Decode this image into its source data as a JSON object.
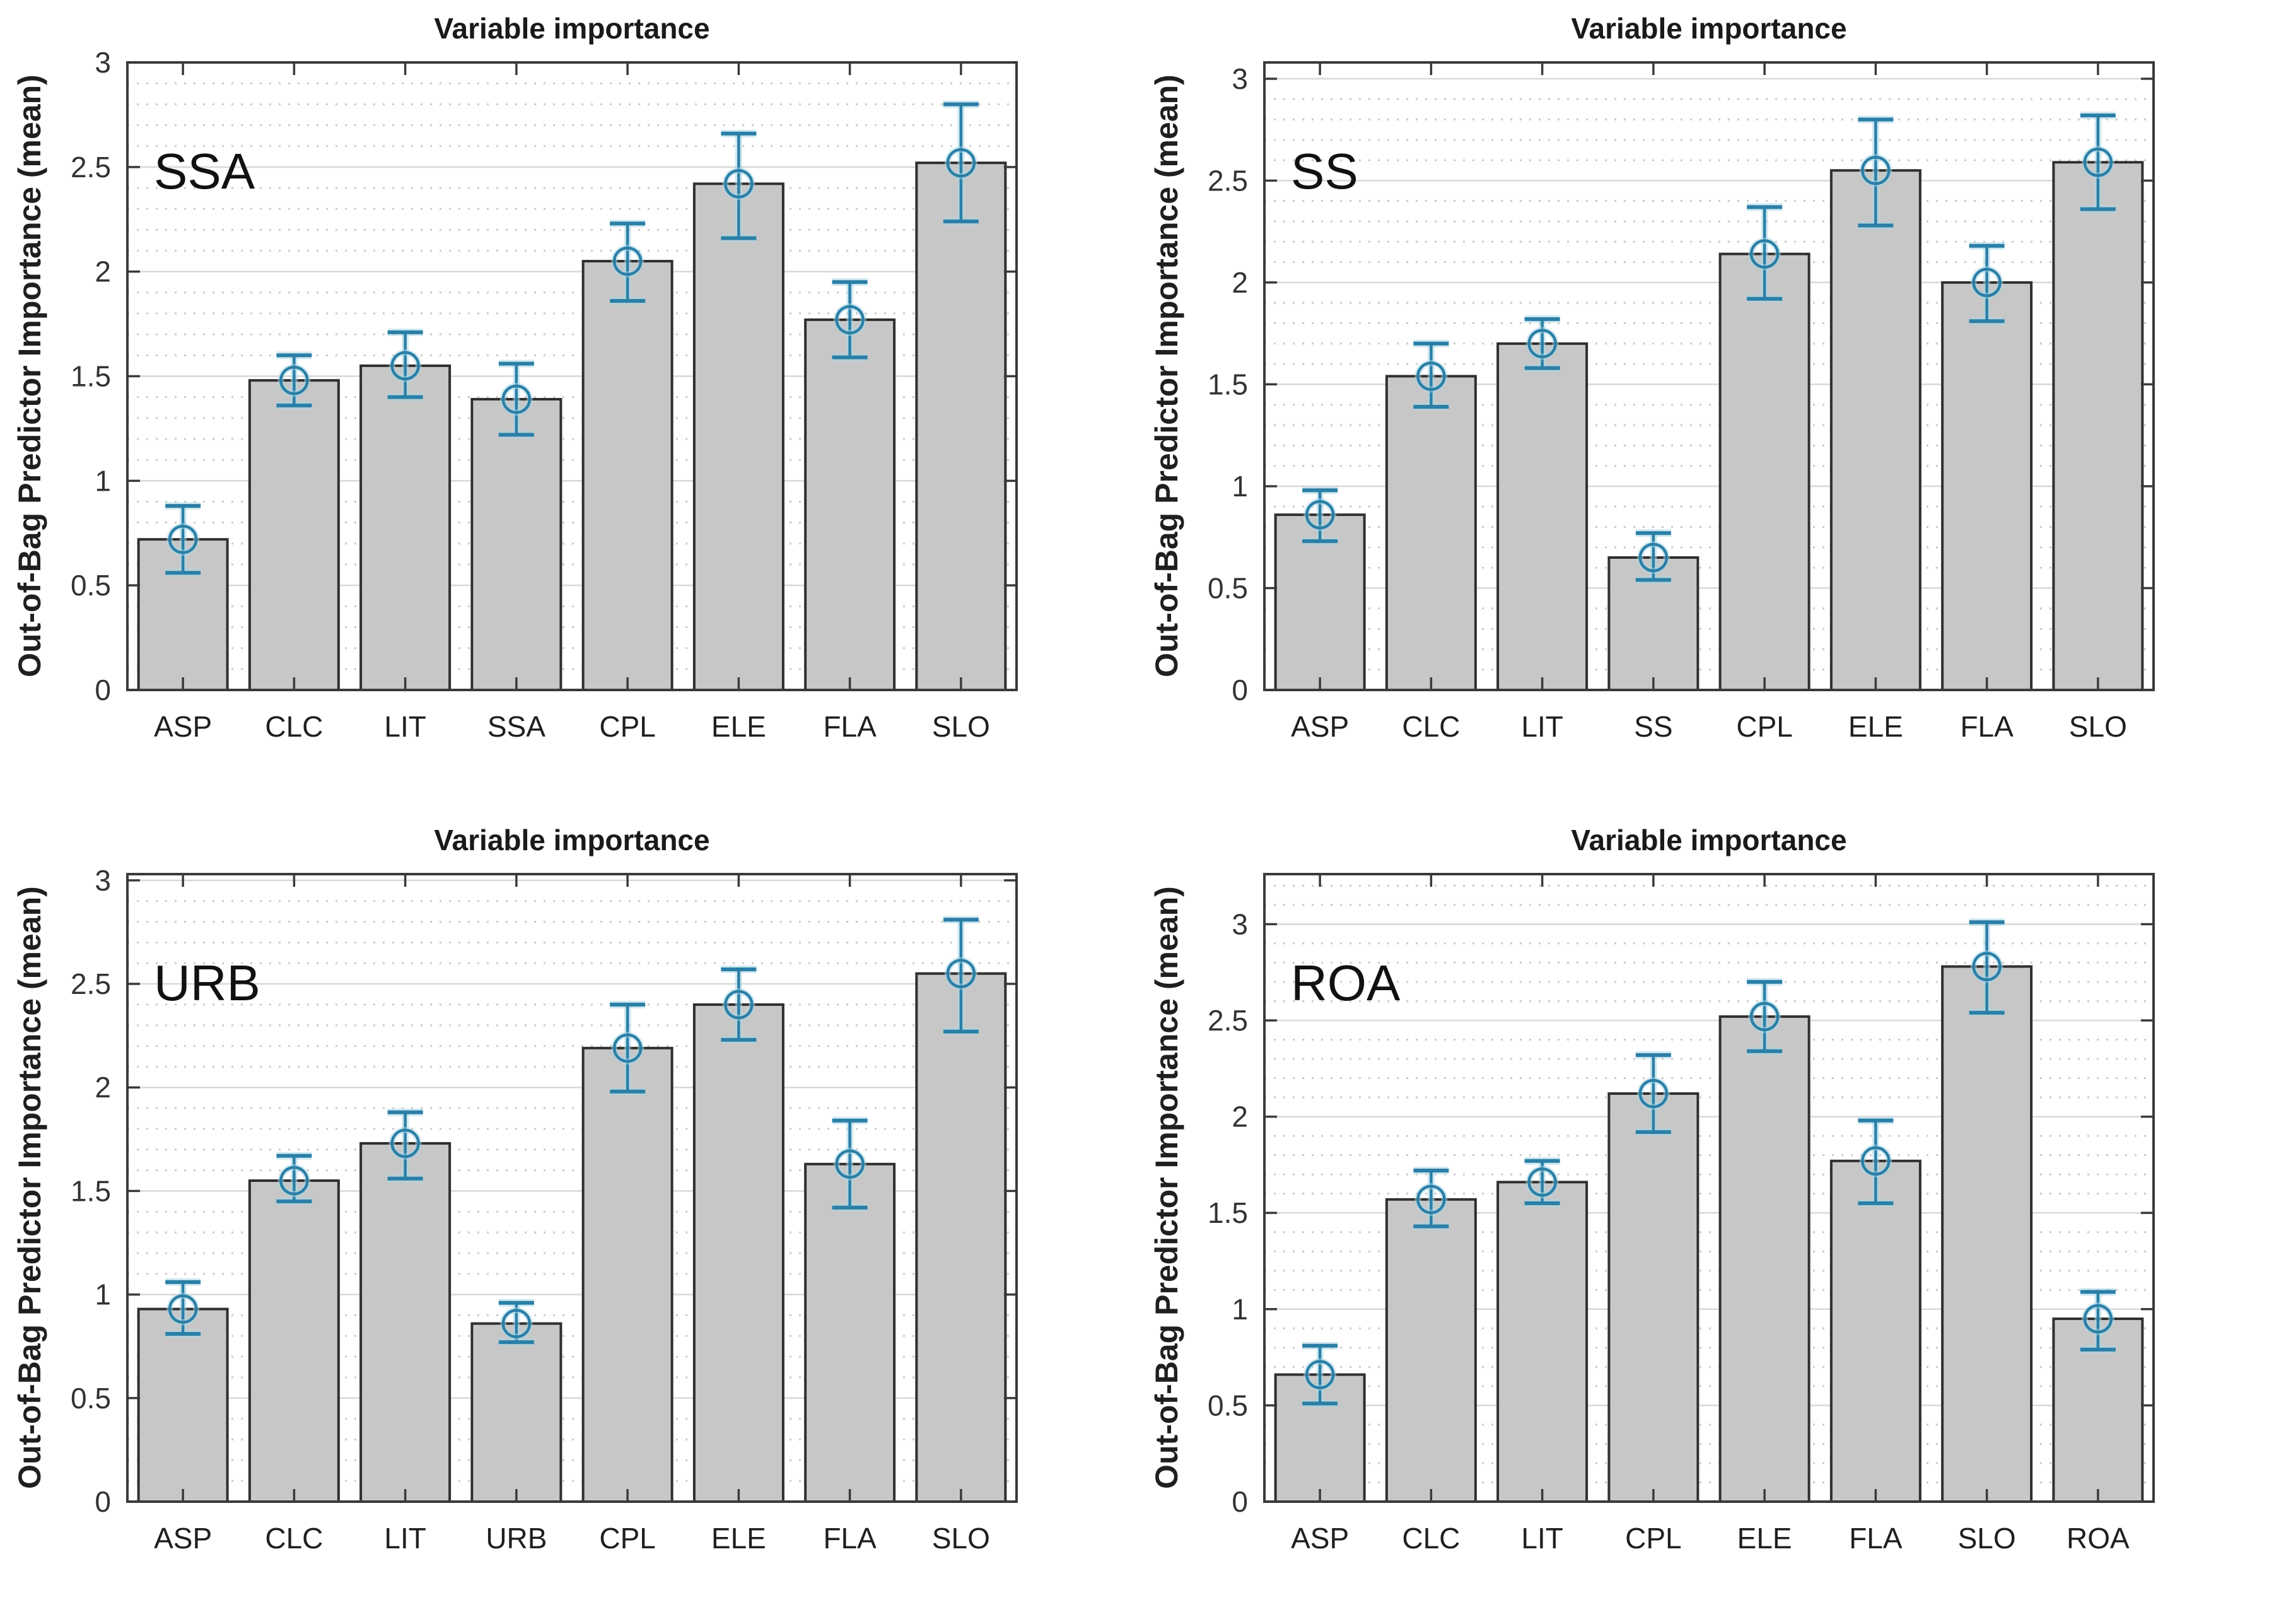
{
  "figure": {
    "background": "#ffffff",
    "panel_count": 4
  },
  "style": {
    "bar_color": "#c7c7c7",
    "bar_edge_color": "#2f2f2f",
    "error_color": "#2b7fa6",
    "error_glow_color": "#a8d8e8",
    "axis_color": "#3a3a3a",
    "major_grid_color": "#d8d8d8",
    "minor_grid_color": "#cacaca",
    "marker": "open-circle"
  },
  "chart_data": [
    {
      "type": "bar",
      "panel_label": "SSA",
      "title": "Variable importance",
      "ylabel": "Out-of-Bag Predictor Importance (mean)",
      "xlabel": "",
      "categories": [
        "ASP",
        "CLC",
        "LIT",
        "SSA",
        "CPL",
        "ELE",
        "FLA",
        "SLO"
      ],
      "values": [
        0.72,
        1.48,
        1.55,
        1.39,
        2.05,
        2.42,
        1.77,
        2.52
      ],
      "error_low": [
        0.56,
        1.36,
        1.4,
        1.22,
        1.86,
        2.16,
        1.59,
        2.24
      ],
      "error_high": [
        0.88,
        1.6,
        1.71,
        1.56,
        2.23,
        2.66,
        1.95,
        2.8
      ],
      "yticks": [
        0,
        0.5,
        1,
        1.5,
        2,
        2.5,
        3
      ],
      "ytick_labels": [
        "0",
        "0.5",
        "1",
        "1.5",
        "2",
        "2.5",
        "3"
      ],
      "ylim": [
        0,
        3.0
      ],
      "minor_step": 0.1,
      "grid": "horizontal: major solid, minor dotted",
      "legend": "none"
    },
    {
      "type": "bar",
      "panel_label": "SS",
      "title": "Variable importance",
      "ylabel": "Out-of-Bag Predictor Importance (mean)",
      "xlabel": "",
      "categories": [
        "ASP",
        "CLC",
        "LIT",
        "SS",
        "CPL",
        "ELE",
        "FLA",
        "SLO"
      ],
      "values": [
        0.86,
        1.54,
        1.7,
        0.65,
        2.14,
        2.55,
        2.0,
        2.59
      ],
      "error_low": [
        0.73,
        1.39,
        1.58,
        0.54,
        1.92,
        2.28,
        1.81,
        2.36
      ],
      "error_high": [
        0.98,
        1.7,
        1.82,
        0.77,
        2.37,
        2.8,
        2.18,
        2.82
      ],
      "yticks": [
        0,
        0.5,
        1,
        1.5,
        2,
        2.5,
        3
      ],
      "ytick_labels": [
        "0",
        "0.5",
        "1",
        "1.5",
        "2",
        "2.5",
        "3"
      ],
      "ylim": [
        0,
        3.08
      ],
      "minor_step": 0.1,
      "grid": "horizontal: major solid, minor dotted",
      "legend": "none"
    },
    {
      "type": "bar",
      "panel_label": "URB",
      "title": "Variable importance",
      "ylabel": "Out-of-Bag Predictor Importance (mean)",
      "xlabel": "",
      "categories": [
        "ASP",
        "CLC",
        "LIT",
        "URB",
        "CPL",
        "ELE",
        "FLA",
        "SLO"
      ],
      "values": [
        0.93,
        1.55,
        1.73,
        0.86,
        2.19,
        2.4,
        1.63,
        2.55
      ],
      "error_low": [
        0.81,
        1.45,
        1.56,
        0.77,
        1.98,
        2.23,
        1.42,
        2.27
      ],
      "error_high": [
        1.06,
        1.67,
        1.88,
        0.96,
        2.4,
        2.57,
        1.84,
        2.81
      ],
      "yticks": [
        0,
        0.5,
        1,
        1.5,
        2,
        2.5,
        3
      ],
      "ytick_labels": [
        "0",
        "0.5",
        "1",
        "1.5",
        "2",
        "2.5",
        "3"
      ],
      "ylim": [
        0,
        3.03
      ],
      "minor_step": 0.1,
      "grid": "horizontal: major solid, minor dotted",
      "legend": "none"
    },
    {
      "type": "bar",
      "panel_label": "ROA",
      "title": "Variable importance",
      "ylabel": "Out-of-Bag Predictor Importance (mean)",
      "xlabel": "",
      "categories": [
        "ASP",
        "CLC",
        "LIT",
        "CPL",
        "ELE",
        "FLA",
        "SLO",
        "ROA"
      ],
      "values": [
        0.66,
        1.57,
        1.66,
        2.12,
        2.52,
        1.77,
        2.78,
        0.95
      ],
      "error_low": [
        0.51,
        1.43,
        1.55,
        1.92,
        2.34,
        1.55,
        2.54,
        0.79
      ],
      "error_high": [
        0.81,
        1.72,
        1.77,
        2.32,
        2.7,
        1.98,
        3.01,
        1.09
      ],
      "yticks": [
        0,
        0.5,
        1,
        1.5,
        2,
        2.5,
        3
      ],
      "ytick_labels": [
        "0",
        "0.5",
        "1",
        "1.5",
        "2",
        "2.5",
        "3"
      ],
      "ylim": [
        0,
        3.26
      ],
      "minor_step": 0.1,
      "grid": "horizontal: major solid, minor dotted",
      "legend": "none"
    }
  ]
}
